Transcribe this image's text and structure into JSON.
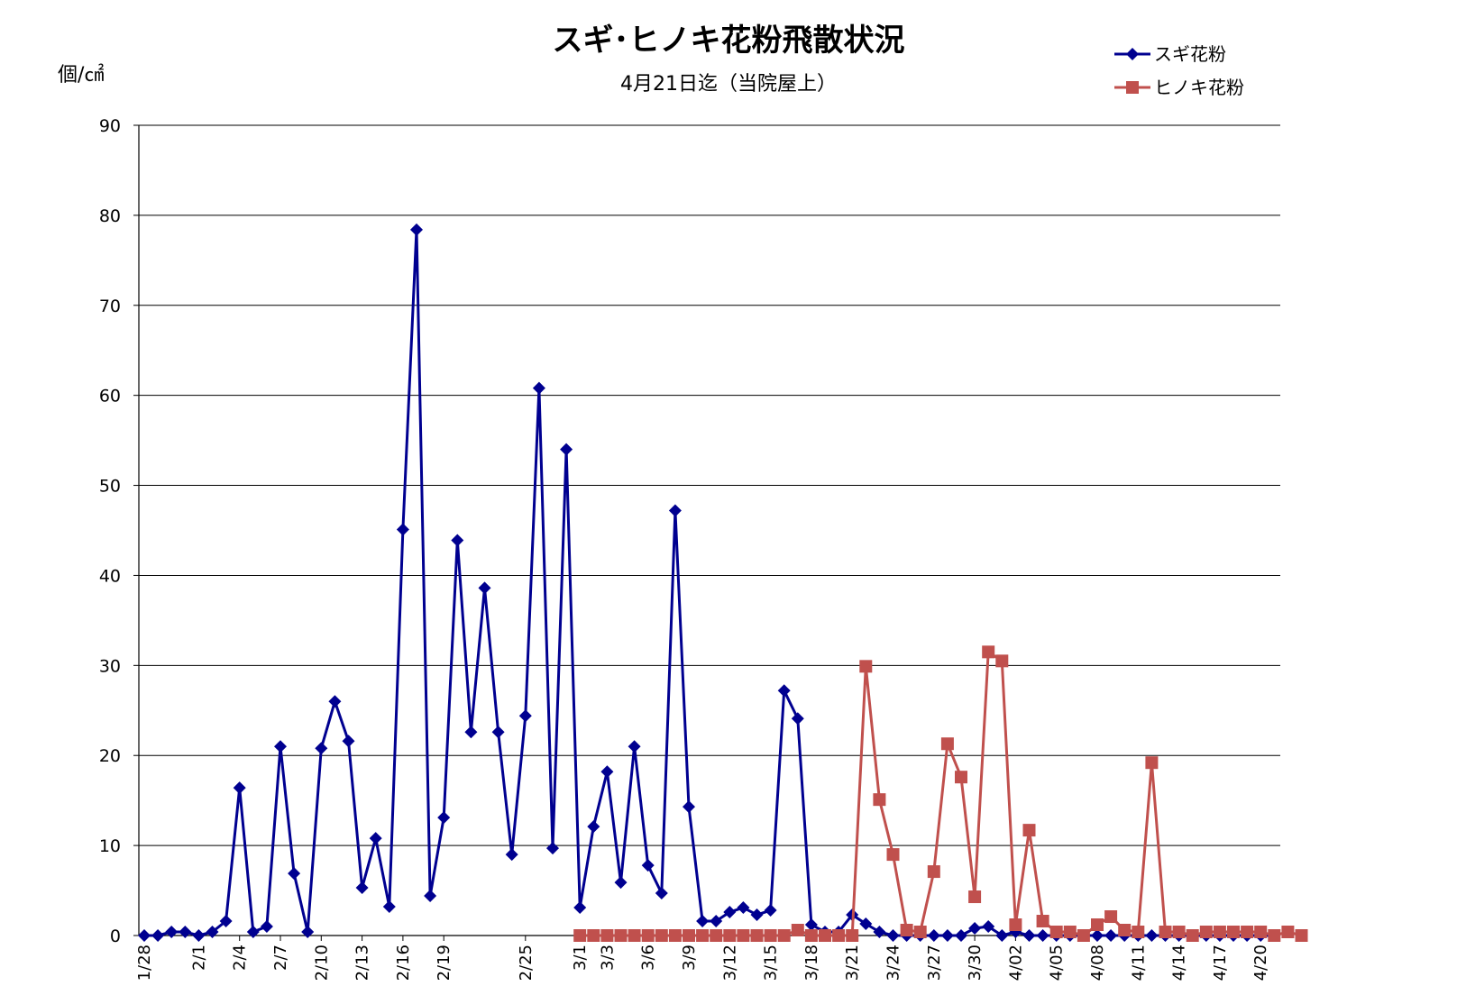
{
  "chart_data": {
    "type": "line",
    "title": "スギ･ヒノキ花粉飛散状況",
    "subtitle": "4月21日迄（当院屋上）",
    "ylabel": "個/㎠",
    "ylim": [
      0,
      90
    ],
    "yticks": [
      0,
      10,
      20,
      30,
      40,
      50,
      60,
      70,
      80,
      90
    ],
    "grid": true,
    "legend_position": "top-right",
    "x_tick_labels": [
      {
        "i": 0,
        "label": "1/28"
      },
      {
        "i": 4,
        "label": "2/1"
      },
      {
        "i": 7,
        "label": "2/4"
      },
      {
        "i": 10,
        "label": "2/7"
      },
      {
        "i": 13,
        "label": "2/10"
      },
      {
        "i": 16,
        "label": "2/13"
      },
      {
        "i": 19,
        "label": "2/16"
      },
      {
        "i": 22,
        "label": "2/19"
      },
      {
        "i": 28,
        "label": "2/25"
      },
      {
        "i": 32,
        "label": "3/1"
      },
      {
        "i": 34,
        "label": "3/3"
      },
      {
        "i": 37,
        "label": "3/6"
      },
      {
        "i": 40,
        "label": "3/9"
      },
      {
        "i": 43,
        "label": "3/12"
      },
      {
        "i": 46,
        "label": "3/15"
      },
      {
        "i": 49,
        "label": "3/18"
      },
      {
        "i": 52,
        "label": "3/21"
      },
      {
        "i": 55,
        "label": "3/24"
      },
      {
        "i": 58,
        "label": "3/27"
      },
      {
        "i": 61,
        "label": "3/30"
      },
      {
        "i": 64,
        "label": "4/02"
      },
      {
        "i": 67,
        "label": "4/05"
      },
      {
        "i": 70,
        "label": "4/08"
      },
      {
        "i": 73,
        "label": "4/11"
      },
      {
        "i": 76,
        "label": "4/14"
      },
      {
        "i": 79,
        "label": "4/17"
      },
      {
        "i": 82,
        "label": "4/20"
      }
    ],
    "series": [
      {
        "name": "スギ花粉",
        "color": "#000090",
        "marker": "diamond",
        "x_start": 0,
        "values": [
          0,
          0,
          0.4,
          0.4,
          0,
          0.4,
          1.6,
          16.4,
          0.4,
          1.0,
          21.0,
          6.9,
          0.4,
          20.8,
          26.0,
          21.6,
          5.3,
          10.8,
          3.2,
          45.1,
          78.4,
          4.4,
          13.1,
          43.9,
          22.6,
          38.6,
          22.6,
          9.0,
          24.4,
          60.8,
          9.7,
          54.0,
          3.1,
          12.1,
          18.2,
          5.9,
          21.0,
          7.8,
          4.7,
          47.2,
          14.3,
          1.6,
          1.6,
          2.6,
          3.1,
          2.3,
          2.8,
          27.2,
          24.1,
          1.2,
          0.4,
          0.4,
          2.3,
          1.3,
          0.4,
          0,
          0,
          0,
          0,
          0,
          0,
          0.8,
          1.0,
          0,
          0.4,
          0,
          0,
          0,
          0,
          0,
          0,
          0,
          0,
          0,
          0,
          0,
          0,
          0,
          0,
          0,
          0,
          0,
          0,
          0
        ]
      },
      {
        "name": "ヒノキ花粉",
        "color": "#c0504d",
        "marker": "square",
        "x_start": 32,
        "values": [
          0,
          0,
          0,
          0,
          0,
          0,
          0,
          0,
          0,
          0,
          0,
          0,
          0,
          0,
          0,
          0,
          0.6,
          0,
          0,
          0,
          0,
          29.9,
          15.1,
          9.0,
          0.6,
          0.4,
          7.1,
          21.3,
          17.6,
          4.3,
          31.5,
          30.5,
          1.2,
          11.7,
          1.6,
          0.4,
          0.4,
          0,
          1.2,
          2.1,
          0.6,
          0.4,
          19.2,
          0.4,
          0.4,
          0,
          0.4,
          0.4,
          0.4,
          0.4,
          0.4,
          0,
          0.4,
          0
        ]
      }
    ]
  }
}
